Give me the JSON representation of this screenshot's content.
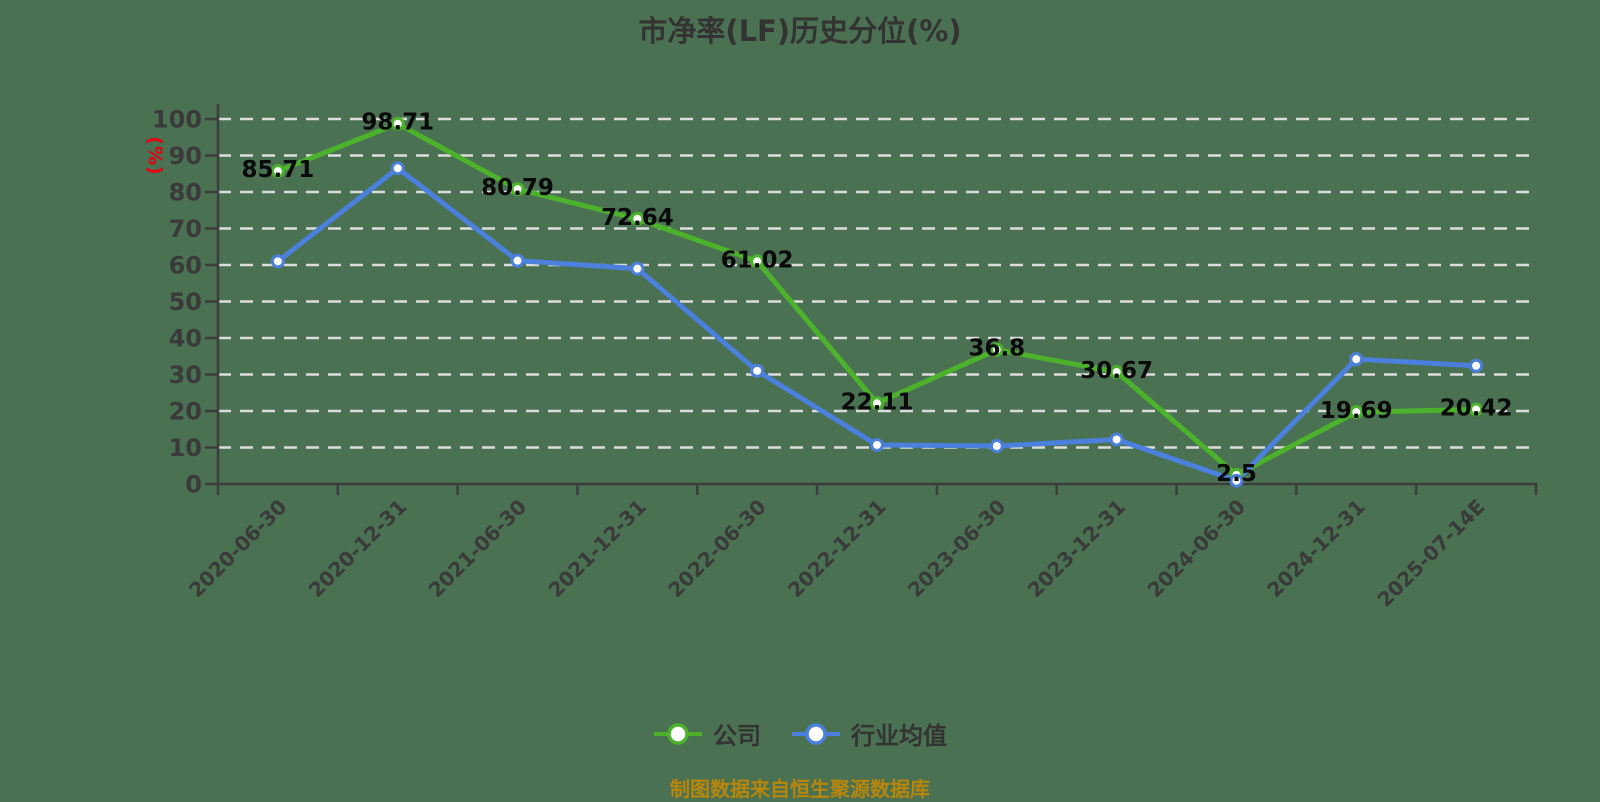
{
  "title": "市净率(LF)历史分位(%)",
  "y_axis_unit": "(%)",
  "footer": "制图数据来自恒生聚源数据库",
  "colors": {
    "background": "#4a7152",
    "company_green": "#4cb22c",
    "industry_blue": "#4b80dd",
    "gridline": "#dcdcdc",
    "axis": "#3d3d3d",
    "tick_text": "#3a3a3a",
    "data_label": "#0a0a0a",
    "title_text": "#333333",
    "unit_red": "#e60012",
    "footer_orange": "#b8860b",
    "marker_fill": "#ffffff"
  },
  "chart_data": {
    "type": "line",
    "title": "市净率(LF)历史分位(%)",
    "categories": [
      "2020-06-30",
      "2020-12-31",
      "2021-06-30",
      "2021-12-31",
      "2022-06-30",
      "2022-12-31",
      "2023-06-30",
      "2023-12-31",
      "2024-06-30",
      "2024-12-31",
      "2025-07-14E"
    ],
    "series": [
      {
        "name": "公司",
        "color": "#4cb22c",
        "values": [
          85.71,
          98.71,
          80.79,
          72.64,
          61.02,
          22.11,
          36.8,
          30.67,
          2.5,
          19.69,
          20.42
        ],
        "labels": [
          "85.71",
          "98.71",
          "80.79",
          "72.64",
          "61.02",
          "22.11",
          "36.8",
          "30.67",
          "2.5",
          "19.69",
          "20.42"
        ],
        "show_labels": true
      },
      {
        "name": "行业均值",
        "color": "#4b80dd",
        "values": [
          61,
          86.5,
          61.2,
          59,
          31,
          10.7,
          10.4,
          12.2,
          0.9,
          34.2,
          32.4
        ],
        "show_labels": false
      }
    ],
    "ylabel": "(%)",
    "ylim": [
      0,
      100
    ],
    "y_tick_step": 10,
    "grid": "horizontal-dashed",
    "legend_position": "bottom"
  }
}
